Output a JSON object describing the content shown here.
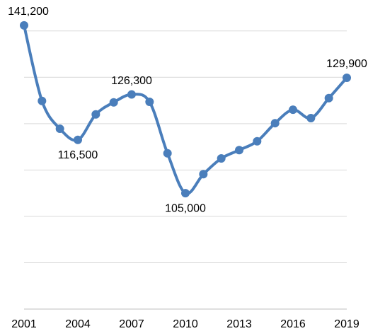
{
  "chart_data": {
    "type": "line",
    "x": [
      2001,
      2002,
      2003,
      2004,
      2005,
      2006,
      2007,
      2008,
      2009,
      2010,
      2011,
      2012,
      2013,
      2014,
      2015,
      2016,
      2017,
      2018,
      2019
    ],
    "series": [
      {
        "color": "#4a7ebb",
        "values": [
          141200,
          124900,
          118900,
          116500,
          122000,
          124600,
          126300,
          124700,
          113600,
          105000,
          109100,
          112500,
          114300,
          116200,
          120100,
          123000,
          121200,
          125500,
          129900
        ],
        "value_labels": [
          "141,200",
          null,
          null,
          "116,500",
          null,
          null,
          "126,300",
          null,
          null,
          "105,000",
          null,
          null,
          null,
          null,
          null,
          null,
          null,
          null,
          "129,900"
        ]
      }
    ],
    "xlim": [
      2001,
      2019
    ],
    "xticks": [
      2001,
      2004,
      2007,
      2010,
      2013,
      2016,
      2019
    ],
    "ylim": [
      80000,
      145000
    ],
    "yticks": [
      80000,
      90000,
      100000,
      110000,
      120000,
      130000,
      140000
    ],
    "grid": true,
    "smooth": true
  }
}
